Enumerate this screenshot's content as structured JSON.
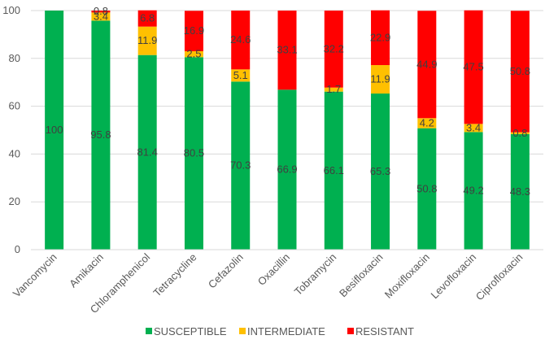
{
  "chart_data": {
    "type": "bar",
    "stacked": true,
    "categories": [
      "Vancomycin",
      "Amikacin",
      "Chloramphenicol",
      "Tetracycline",
      "Cefazolin",
      "Oxacillin",
      "Tobramycin",
      "Besifloxacin",
      "Moxifloxacin",
      "Levofloxacin",
      "Ciprofloxacin"
    ],
    "series": [
      {
        "name": "SUSCEPTIBLE",
        "color": "#00B050",
        "values": [
          100,
          95.8,
          81.4,
          80.5,
          70.3,
          66.9,
          66.1,
          65.3,
          50.8,
          49.2,
          48.3
        ],
        "labels": [
          "100",
          "95.8",
          "81.4",
          "80.5",
          "70.3",
          "66.9",
          "66.1",
          "65.3",
          "50.8",
          "49.2",
          "48.3"
        ]
      },
      {
        "name": "INTERMEDIATE",
        "color": "#FFC000",
        "values": [
          0,
          3.4,
          11.9,
          2.5,
          5.1,
          0,
          1.7,
          11.9,
          4.2,
          3.4,
          0.8
        ],
        "labels": [
          "",
          "3.4",
          "11.9",
          "2.5",
          "5.1",
          "",
          "1.7",
          "11.9",
          "4.2",
          "3.4",
          "0.8"
        ]
      },
      {
        "name": "RESISTANT",
        "color": "#FF0000",
        "values": [
          0,
          0.8,
          6.8,
          16.9,
          24.6,
          33.1,
          32.2,
          22.9,
          44.9,
          47.5,
          50.8
        ],
        "labels": [
          "",
          "0.8",
          "6.8",
          "16.9",
          "24.6",
          "33.1",
          "32.2",
          "22.9",
          "44.9",
          "47.5",
          "50.8"
        ]
      }
    ],
    "yticks": [
      "0",
      "20",
      "40",
      "60",
      "80",
      "100"
    ],
    "ylim": [
      0,
      100
    ],
    "grid": true,
    "legend_position": "bottom"
  }
}
